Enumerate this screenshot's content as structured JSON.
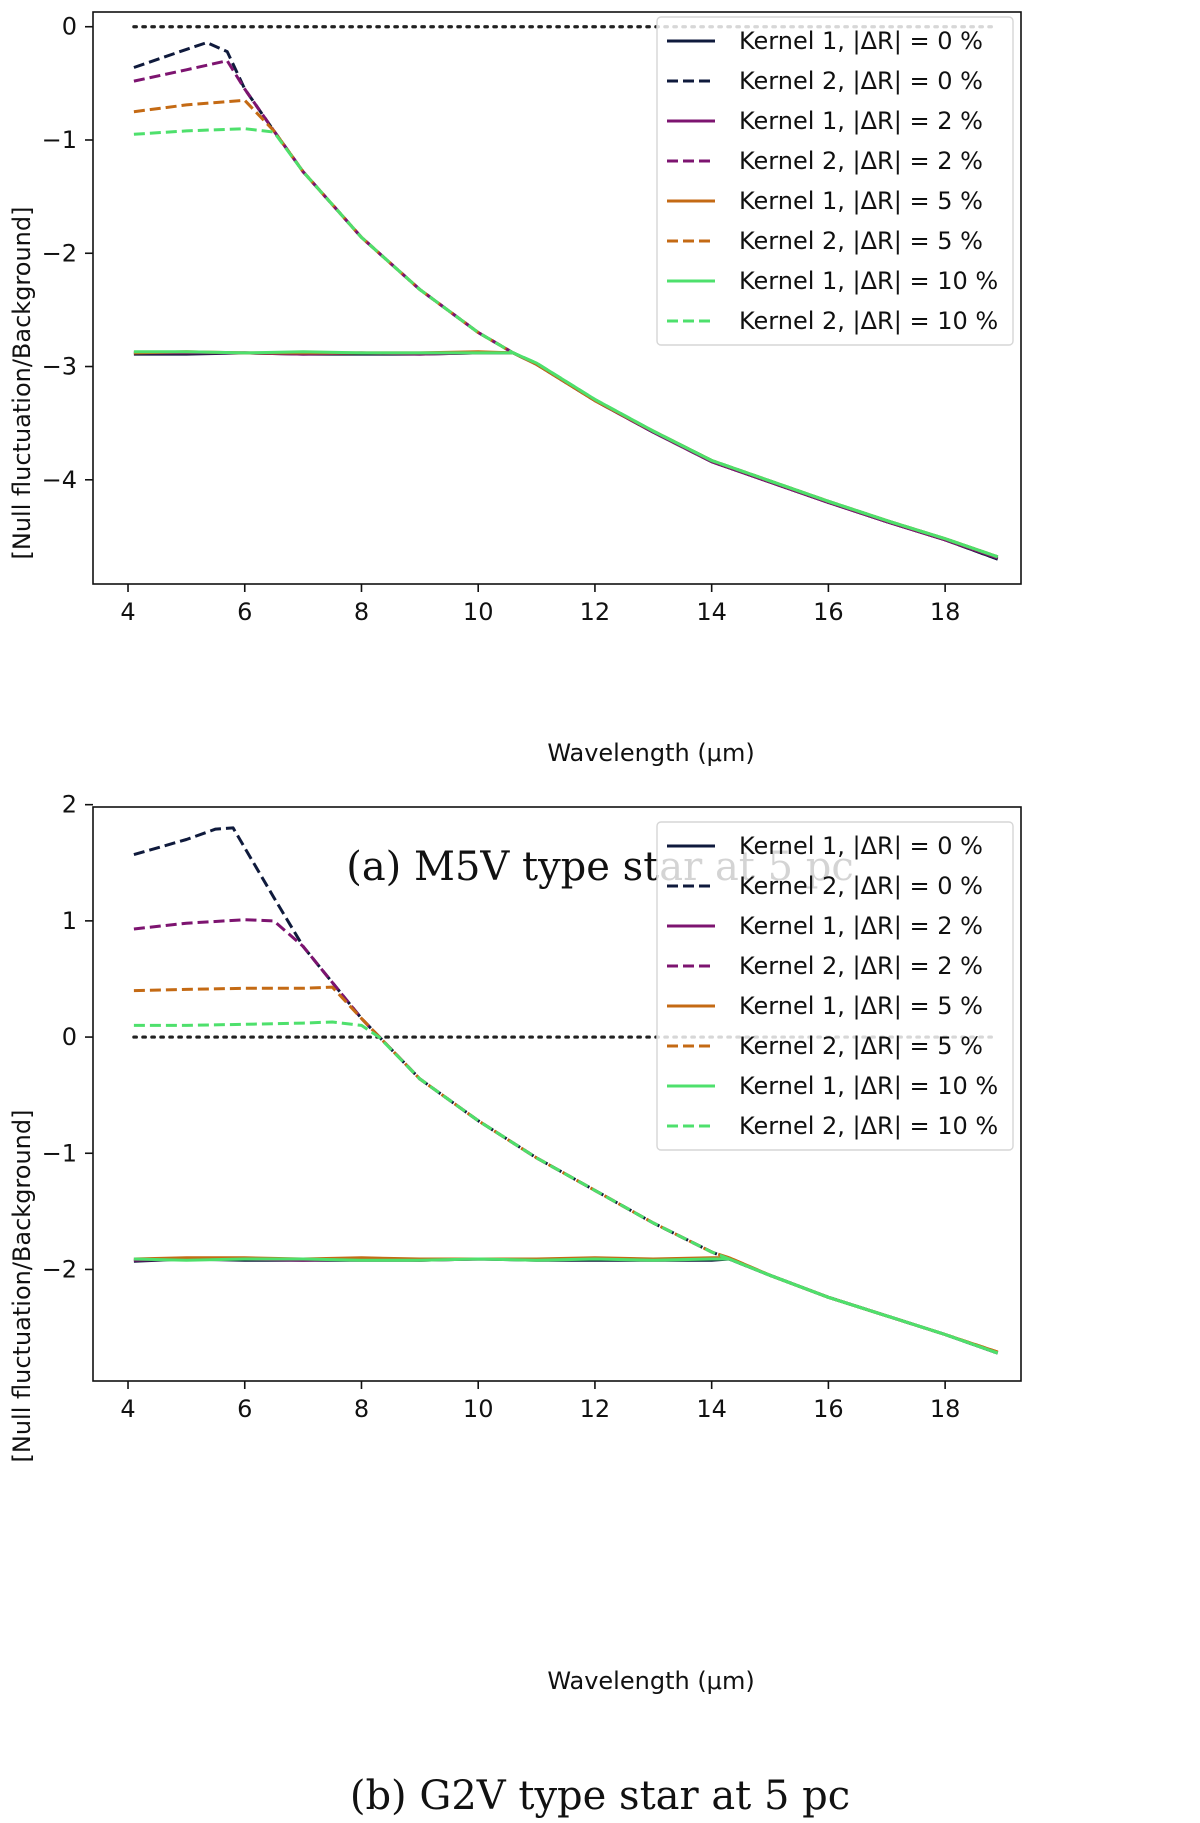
{
  "colors": {
    "dr0": "#0f1a3c",
    "dr2": "#7d1470",
    "dr5": "#c46a14",
    "dr10": "#4ee06c",
    "zero_line": "#222222",
    "axis": "#111111"
  },
  "chart_data": [
    {
      "type": "line",
      "caption": "(a) M5V type star at 5 pc",
      "xlabel": "Wavelength (μm)",
      "ylabel": "[Null fluctuation/Background]",
      "xlim": [
        3.4,
        19.3
      ],
      "ylim": [
        -4.92,
        0.13
      ],
      "xticks": [
        4,
        6,
        8,
        10,
        12,
        14,
        16,
        18
      ],
      "yticks": [
        0,
        -1,
        -2,
        -3,
        -4
      ],
      "legend_position": "top-right",
      "reference_line": {
        "y": 0,
        "x": [
          4.1,
          18.9
        ],
        "style": "dotted"
      },
      "series": [
        {
          "name": "Kernel 1, |ΔR| = 0 %",
          "color_key": "dr0",
          "style": "solid",
          "x": [
            4.1,
            5,
            6,
            7,
            8,
            9,
            10,
            10.6,
            11,
            12,
            13,
            14,
            15,
            16,
            17,
            18,
            18.9
          ],
          "y": [
            -2.89,
            -2.89,
            -2.88,
            -2.89,
            -2.89,
            -2.89,
            -2.88,
            -2.88,
            -2.98,
            -3.3,
            -3.58,
            -3.84,
            -4.02,
            -4.2,
            -4.37,
            -4.53,
            -4.7
          ]
        },
        {
          "name": "Kernel 2, |ΔR| = 0 %",
          "color_key": "dr0",
          "style": "dashed",
          "x": [
            4.1,
            5,
            5.35,
            5.7,
            6,
            6.5,
            7,
            8,
            9,
            10,
            10.6,
            11,
            12,
            13,
            14,
            15,
            16,
            17,
            18,
            18.9
          ],
          "y": [
            -0.36,
            -0.2,
            -0.14,
            -0.22,
            -0.55,
            -0.92,
            -1.28,
            -1.86,
            -2.32,
            -2.7,
            -2.88,
            -2.98,
            -3.3,
            -3.58,
            -3.84,
            -4.02,
            -4.2,
            -4.37,
            -4.53,
            -4.7
          ]
        },
        {
          "name": "Kernel 1, |ΔR| = 2 %",
          "color_key": "dr2",
          "style": "solid",
          "x": [
            4.1,
            5,
            6,
            7,
            8,
            9,
            10,
            10.6,
            11,
            12,
            13,
            14,
            15,
            16,
            17,
            18,
            18.9
          ],
          "y": [
            -2.88,
            -2.88,
            -2.88,
            -2.89,
            -2.88,
            -2.89,
            -2.88,
            -2.88,
            -2.98,
            -3.3,
            -3.58,
            -3.84,
            -4.02,
            -4.2,
            -4.37,
            -4.53,
            -4.69
          ]
        },
        {
          "name": "Kernel 2, |ΔR| = 2 %",
          "color_key": "dr2",
          "style": "dashed",
          "x": [
            4.1,
            5,
            5.7,
            6,
            6.5,
            7,
            8,
            9,
            10,
            10.6,
            11,
            12,
            13,
            14,
            15,
            16,
            17,
            18,
            18.9
          ],
          "y": [
            -0.48,
            -0.38,
            -0.3,
            -0.55,
            -0.92,
            -1.28,
            -1.86,
            -2.32,
            -2.7,
            -2.88,
            -2.98,
            -3.3,
            -3.58,
            -3.84,
            -4.02,
            -4.2,
            -4.37,
            -4.53,
            -4.69
          ]
        },
        {
          "name": "Kernel 1, |ΔR| = 5 %",
          "color_key": "dr5",
          "style": "solid",
          "x": [
            4.1,
            5,
            6,
            7,
            8,
            9,
            10,
            10.6,
            11,
            12,
            13,
            14,
            15,
            16,
            17,
            18,
            18.9
          ],
          "y": [
            -2.88,
            -2.87,
            -2.88,
            -2.88,
            -2.88,
            -2.88,
            -2.87,
            -2.88,
            -2.98,
            -3.3,
            -3.57,
            -3.83,
            -4.01,
            -4.19,
            -4.36,
            -4.52,
            -4.68
          ]
        },
        {
          "name": "Kernel 2, |ΔR| = 5 %",
          "color_key": "dr5",
          "style": "dashed",
          "x": [
            4.1,
            5,
            6,
            6.5,
            7,
            8,
            9,
            10,
            10.6,
            11,
            12,
            13,
            14,
            15,
            16,
            17,
            18,
            18.9
          ],
          "y": [
            -0.75,
            -0.69,
            -0.65,
            -0.92,
            -1.28,
            -1.86,
            -2.32,
            -2.7,
            -2.88,
            -2.98,
            -3.3,
            -3.57,
            -3.83,
            -4.01,
            -4.19,
            -4.36,
            -4.52,
            -4.68
          ]
        },
        {
          "name": "Kernel 1, |ΔR| = 10 %",
          "color_key": "dr10",
          "style": "solid",
          "x": [
            4.1,
            5,
            6,
            7,
            8,
            9,
            10,
            10.6,
            11,
            12,
            13,
            14,
            15,
            16,
            17,
            18,
            18.9
          ],
          "y": [
            -2.87,
            -2.87,
            -2.88,
            -2.87,
            -2.88,
            -2.88,
            -2.88,
            -2.88,
            -2.97,
            -3.29,
            -3.57,
            -3.83,
            -4.01,
            -4.19,
            -4.36,
            -4.52,
            -4.68
          ]
        },
        {
          "name": "Kernel 2, |ΔR| = 10 %",
          "color_key": "dr10",
          "style": "dashed",
          "x": [
            4.1,
            5,
            6,
            6.5,
            7,
            8,
            9,
            10,
            10.6,
            11,
            12,
            13,
            14,
            15,
            16,
            17,
            18,
            18.9
          ],
          "y": [
            -0.95,
            -0.92,
            -0.9,
            -0.93,
            -1.28,
            -1.86,
            -2.32,
            -2.7,
            -2.88,
            -2.97,
            -3.29,
            -3.57,
            -3.83,
            -4.01,
            -4.19,
            -4.36,
            -4.52,
            -4.68
          ]
        }
      ]
    },
    {
      "type": "line",
      "caption": "(b) G2V type star at 5 pc",
      "xlabel": "Wavelength (μm)",
      "ylabel": "[Null fluctuation/Background]",
      "xlim": [
        3.4,
        19.3
      ],
      "ylim": [
        -2.96,
        1.98
      ],
      "xticks": [
        4,
        6,
        8,
        10,
        12,
        14,
        16,
        18
      ],
      "yticks": [
        2,
        1,
        0,
        -1,
        -2
      ],
      "legend_position": "top-right",
      "reference_line": {
        "y": 0,
        "x": [
          4.1,
          18.9
        ],
        "style": "dotted"
      },
      "series": [
        {
          "name": "Kernel 1, |ΔR| = 0 %",
          "color_key": "dr0",
          "style": "solid",
          "x": [
            4.1,
            5,
            6,
            7,
            8,
            9,
            10,
            11,
            12,
            13,
            14,
            14.3,
            15,
            16,
            17,
            18,
            18.9
          ],
          "y": [
            -1.93,
            -1.91,
            -1.92,
            -1.92,
            -1.92,
            -1.92,
            -1.91,
            -1.92,
            -1.92,
            -1.92,
            -1.92,
            -1.91,
            -2.05,
            -2.24,
            -2.4,
            -2.56,
            -2.72
          ]
        },
        {
          "name": "Kernel 2, |ΔR| = 0 %",
          "color_key": "dr0",
          "style": "dashed",
          "x": [
            4.1,
            5,
            5.5,
            5.8,
            6.5,
            7,
            8,
            9,
            10,
            11,
            12,
            13,
            14,
            14.3,
            15,
            16,
            17,
            18,
            18.9
          ],
          "y": [
            1.57,
            1.7,
            1.79,
            1.8,
            1.2,
            0.78,
            0.16,
            -0.36,
            -0.72,
            -1.04,
            -1.32,
            -1.6,
            -1.85,
            -1.91,
            -2.05,
            -2.24,
            -2.4,
            -2.56,
            -2.72
          ]
        },
        {
          "name": "Kernel 1, |ΔR| = 2 %",
          "color_key": "dr2",
          "style": "solid",
          "x": [
            4.1,
            5,
            6,
            7,
            8,
            9,
            10,
            11,
            12,
            13,
            14,
            14.3,
            15,
            16,
            17,
            18,
            18.9
          ],
          "y": [
            -1.92,
            -1.91,
            -1.91,
            -1.92,
            -1.91,
            -1.92,
            -1.91,
            -1.91,
            -1.91,
            -1.91,
            -1.91,
            -1.91,
            -2.05,
            -2.24,
            -2.4,
            -2.56,
            -2.72
          ]
        },
        {
          "name": "Kernel 2, |ΔR| = 2 %",
          "color_key": "dr2",
          "style": "dashed",
          "x": [
            4.1,
            5,
            6,
            6.5,
            7,
            8,
            9,
            10,
            11,
            12,
            13,
            14,
            14.3,
            15,
            16,
            17,
            18,
            18.9
          ],
          "y": [
            0.93,
            0.98,
            1.01,
            1.0,
            0.78,
            0.16,
            -0.36,
            -0.72,
            -1.04,
            -1.32,
            -1.6,
            -1.85,
            -1.91,
            -2.05,
            -2.24,
            -2.4,
            -2.56,
            -2.72
          ]
        },
        {
          "name": "Kernel 1, |ΔR| = 5 %",
          "color_key": "dr5",
          "style": "solid",
          "x": [
            4.1,
            5,
            6,
            7,
            8,
            9,
            10,
            11,
            12,
            13,
            14,
            14.3,
            15,
            16,
            17,
            18,
            18.9
          ],
          "y": [
            -1.91,
            -1.9,
            -1.9,
            -1.91,
            -1.9,
            -1.91,
            -1.91,
            -1.91,
            -1.9,
            -1.91,
            -1.9,
            -1.9,
            -2.05,
            -2.24,
            -2.4,
            -2.56,
            -2.71
          ]
        },
        {
          "name": "Kernel 2, |ΔR| = 5 %",
          "color_key": "dr5",
          "style": "dashed",
          "x": [
            4.1,
            5,
            6,
            7,
            7.5,
            8,
            9,
            10,
            11,
            12,
            13,
            14,
            14.3,
            15,
            16,
            17,
            18,
            18.9
          ],
          "y": [
            0.4,
            0.41,
            0.42,
            0.42,
            0.43,
            0.16,
            -0.36,
            -0.72,
            -1.04,
            -1.32,
            -1.6,
            -1.85,
            -1.9,
            -2.05,
            -2.24,
            -2.4,
            -2.56,
            -2.71
          ]
        },
        {
          "name": "Kernel 1, |ΔR| = 10 %",
          "color_key": "dr10",
          "style": "solid",
          "x": [
            4.1,
            5,
            6,
            7,
            8,
            9,
            10,
            11,
            12,
            13,
            14,
            14.3,
            15,
            16,
            17,
            18,
            18.9
          ],
          "y": [
            -1.91,
            -1.92,
            -1.91,
            -1.91,
            -1.92,
            -1.92,
            -1.91,
            -1.92,
            -1.91,
            -1.92,
            -1.91,
            -1.91,
            -2.05,
            -2.24,
            -2.4,
            -2.56,
            -2.72
          ]
        },
        {
          "name": "Kernel 2, |ΔR| = 10 %",
          "color_key": "dr10",
          "style": "dashed",
          "x": [
            4.1,
            5,
            6,
            7,
            7.5,
            8,
            8.3,
            9,
            10,
            11,
            12,
            13,
            14,
            14.3,
            15,
            16,
            17,
            18,
            18.9
          ],
          "y": [
            0.1,
            0.1,
            0.11,
            0.12,
            0.13,
            0.1,
            0.0,
            -0.36,
            -0.72,
            -1.04,
            -1.32,
            -1.6,
            -1.85,
            -1.91,
            -2.05,
            -2.24,
            -2.4,
            -2.56,
            -2.72
          ]
        }
      ]
    }
  ]
}
